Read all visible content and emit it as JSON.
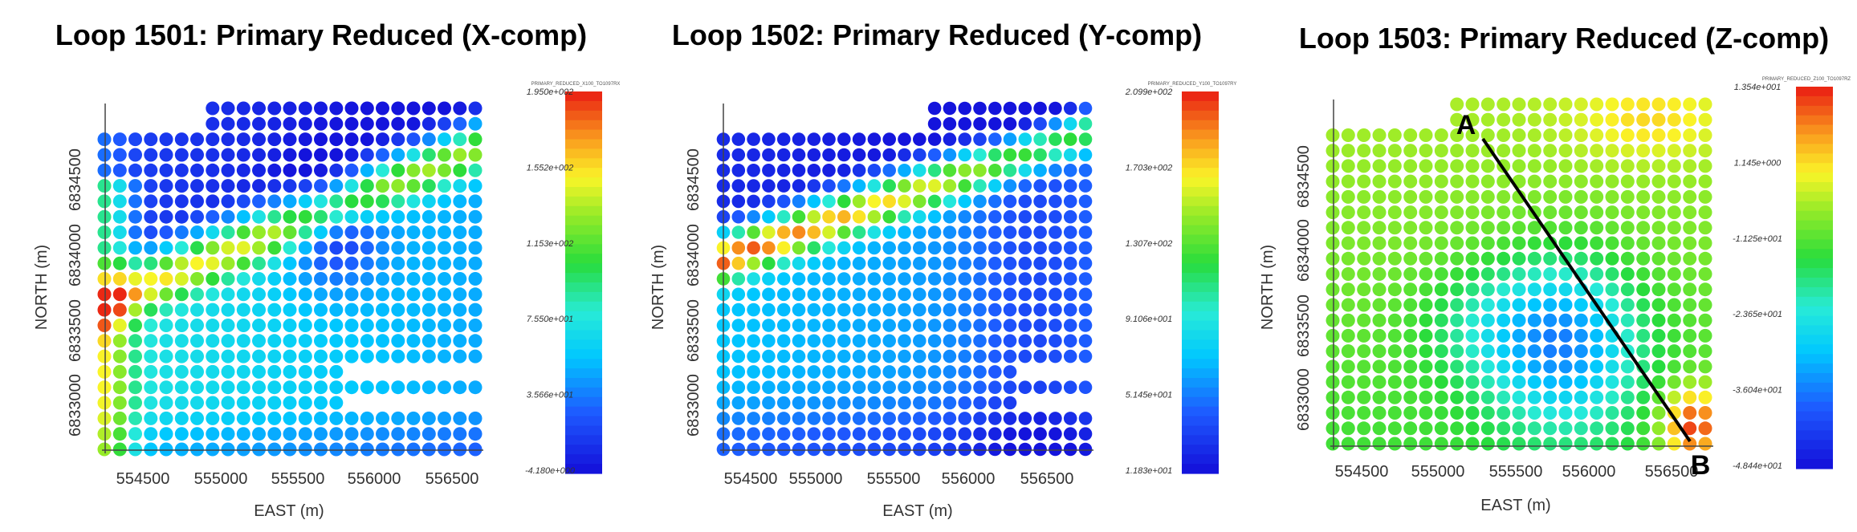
{
  "chart_data": [
    {
      "type": "scatter",
      "title": "Loop 1501: Primary Reduced (X-comp)",
      "xlabel": "EAST (m)",
      "ylabel": "NORTH (m)",
      "xticks": [
        "554500",
        "555000",
        "555500",
        "556000",
        "556500"
      ],
      "yticks": [
        "6833000",
        "6833500",
        "6834000",
        "6834500"
      ],
      "colorbar": {
        "title": "PRIMARY_REDUCED_X100_TO1097RX",
        "ticks": [
          "1.950e+002",
          "1.552e+002",
          "1.153e+002",
          "7.550e+001",
          "3.566e+001",
          "-4.180e+000"
        ],
        "min": -4.18,
        "max": 195.0
      },
      "grid": {
        "columns": 25,
        "rows": 23
      },
      "pattern": "x-comp"
    },
    {
      "type": "scatter",
      "title": "Loop 1502: Primary Reduced (Y-comp)",
      "xlabel": "EAST (m)",
      "ylabel": "NORTH (m)",
      "xticks": [
        "554500",
        "555000",
        "555500",
        "556000",
        "556500"
      ],
      "yticks": [
        "6833000",
        "6833500",
        "6834000",
        "6834500"
      ],
      "colorbar": {
        "title": "PRIMARY_REDUCED_Y100_TO1097RY",
        "ticks": [
          "2.099e+002",
          "1.703e+002",
          "1.307e+002",
          "9.106e+001",
          "5.145e+001",
          "1.183e+001"
        ],
        "min": 11.83,
        "max": 209.9
      },
      "grid": {
        "columns": 25,
        "rows": 23
      },
      "pattern": "y-comp"
    },
    {
      "type": "scatter",
      "title": "Loop 1503: Primary Reduced (Z-comp)",
      "xlabel": "EAST (m)",
      "ylabel": "NORTH (m)",
      "xticks": [
        "554500",
        "555000",
        "555500",
        "556000",
        "556500"
      ],
      "yticks": [
        "6833000",
        "6833500",
        "6834000",
        "6834500"
      ],
      "colorbar": {
        "title": "PRIMARY_REDUCED_Z100_TO1097RZ",
        "ticks": [
          "1.354e+001",
          "1.145e+000",
          "-1.125e+001",
          "-2.365e+001",
          "-3.604e+001",
          "-4.844e+001"
        ],
        "min": -48.44,
        "max": 13.54
      },
      "grid": {
        "columns": 25,
        "rows": 23
      },
      "pattern": "z-comp",
      "profile": {
        "start_label": "A",
        "end_label": "B",
        "start": [
          555420,
          6834600
        ],
        "end": [
          556860,
          6832950
        ]
      }
    }
  ]
}
